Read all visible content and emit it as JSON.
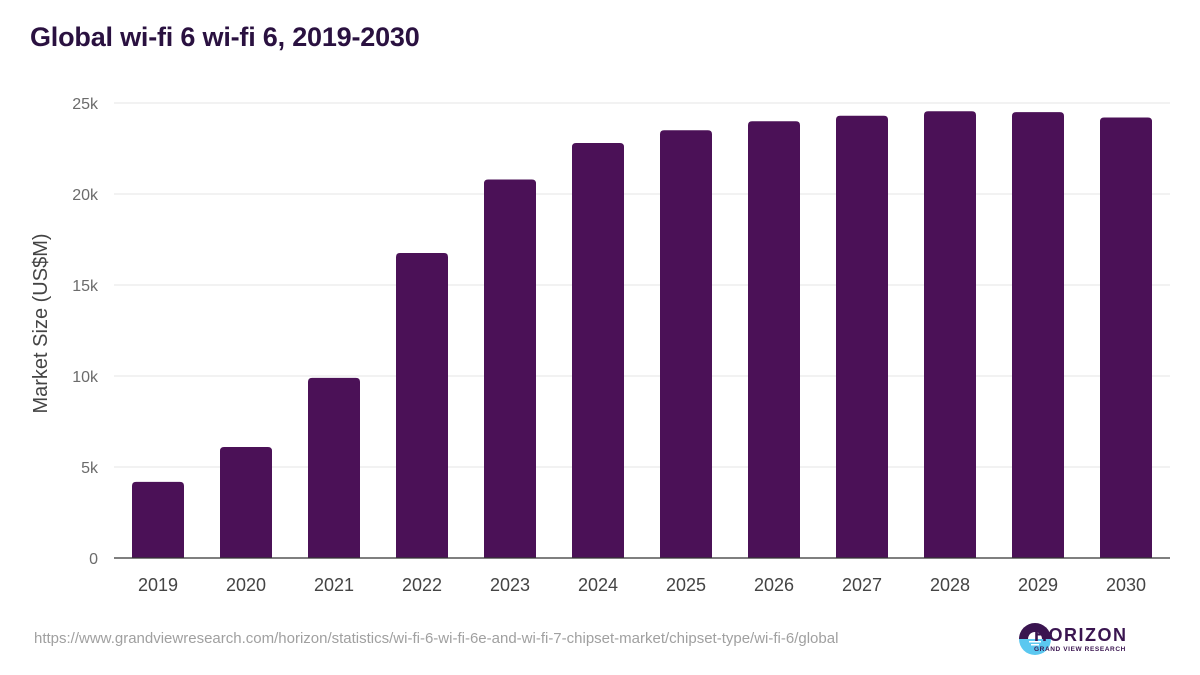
{
  "chart_data": {
    "type": "bar",
    "title": "Global wi-fi 6 wi-fi 6, 2019-2030",
    "xlabel": "",
    "ylabel": "Market Size (US$M)",
    "categories": [
      "2019",
      "2020",
      "2021",
      "2022",
      "2023",
      "2024",
      "2025",
      "2026",
      "2027",
      "2028",
      "2029",
      "2030"
    ],
    "values": [
      4180,
      6100,
      9900,
      16760,
      20800,
      22800,
      23500,
      24000,
      24300,
      24550,
      24500,
      24200
    ],
    "ylim": [
      0,
      25000
    ],
    "yticks": [
      0,
      5000,
      10000,
      15000,
      20000,
      25000
    ],
    "ytick_labels": [
      "0",
      "5k",
      "10k",
      "15k",
      "20k",
      "25k"
    ],
    "grid": true,
    "legend": "none",
    "bar_color": "#4b1157"
  },
  "footer": {
    "source_url": "https://www.grandviewresearch.com/horizon/statistics/wi-fi-6-wi-fi-6e-and-wi-fi-7-chipset-market/chipset-type/wi-fi-6/global",
    "logo_name": "HORIZON",
    "logo_sub": "GRAND VIEW RESEARCH"
  }
}
